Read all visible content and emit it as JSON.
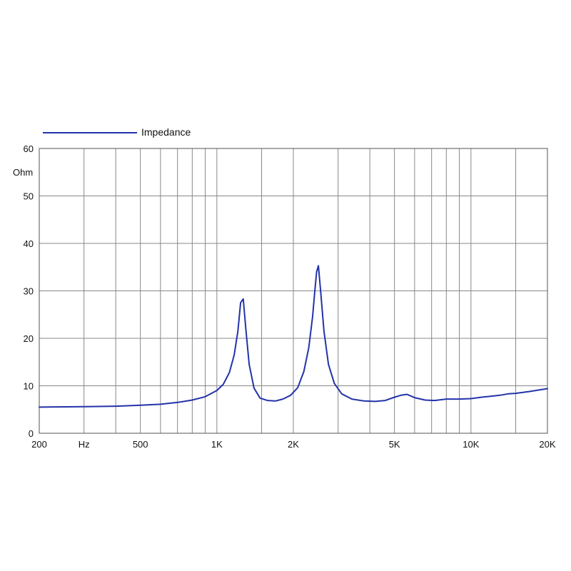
{
  "chart_data": {
    "type": "line",
    "x_scale": "log",
    "xlim": [
      200,
      20000
    ],
    "ylim": [
      0,
      60
    ],
    "ylabel": "Ohm",
    "xlabel": "",
    "grid": true,
    "legend_position": "top-left",
    "x_ticks": [
      {
        "value": 200,
        "label": "200"
      },
      {
        "value": 300,
        "label": "Hz"
      },
      {
        "value": 500,
        "label": "500"
      },
      {
        "value": 1000,
        "label": "1K"
      },
      {
        "value": 2000,
        "label": "2K"
      },
      {
        "value": 5000,
        "label": "5K"
      },
      {
        "value": 10000,
        "label": "10K"
      },
      {
        "value": 20000,
        "label": "20K"
      }
    ],
    "x_gridlines": [
      200,
      300,
      400,
      500,
      600,
      700,
      800,
      900,
      1000,
      1500,
      2000,
      3000,
      4000,
      5000,
      6000,
      7000,
      8000,
      9000,
      10000,
      15000,
      20000
    ],
    "y_ticks": [
      0,
      10,
      20,
      30,
      40,
      50,
      60
    ],
    "series": [
      {
        "name": "Impedance",
        "color": "#2233aa",
        "x": [
          200,
          300,
          400,
          500,
          600,
          700,
          800,
          900,
          1000,
          1060,
          1120,
          1170,
          1210,
          1240,
          1270,
          1300,
          1340,
          1400,
          1480,
          1580,
          1700,
          1820,
          1950,
          2080,
          2200,
          2300,
          2380,
          2430,
          2470,
          2510,
          2560,
          2640,
          2750,
          2900,
          3100,
          3400,
          3800,
          4200,
          4600,
          5000,
          5300,
          5600,
          6000,
          6600,
          7200,
          8000,
          9000,
          10000,
          11000,
          12000,
          13000,
          14000,
          15000,
          17000,
          20000
        ],
        "y": [
          5.5,
          5.6,
          5.7,
          5.9,
          6.1,
          6.5,
          7.0,
          7.7,
          9.0,
          10.3,
          12.8,
          16.5,
          21.5,
          27.5,
          28.3,
          22.0,
          14.5,
          9.5,
          7.4,
          6.9,
          6.8,
          7.2,
          8.0,
          9.6,
          13.0,
          18.0,
          24.5,
          30.0,
          34.0,
          35.3,
          30.0,
          21.5,
          14.5,
          10.5,
          8.3,
          7.2,
          6.8,
          6.7,
          6.9,
          7.6,
          8.0,
          8.2,
          7.5,
          7.0,
          6.9,
          7.2,
          7.2,
          7.3,
          7.6,
          7.8,
          8.0,
          8.3,
          8.4,
          8.8,
          9.4
        ]
      }
    ]
  }
}
